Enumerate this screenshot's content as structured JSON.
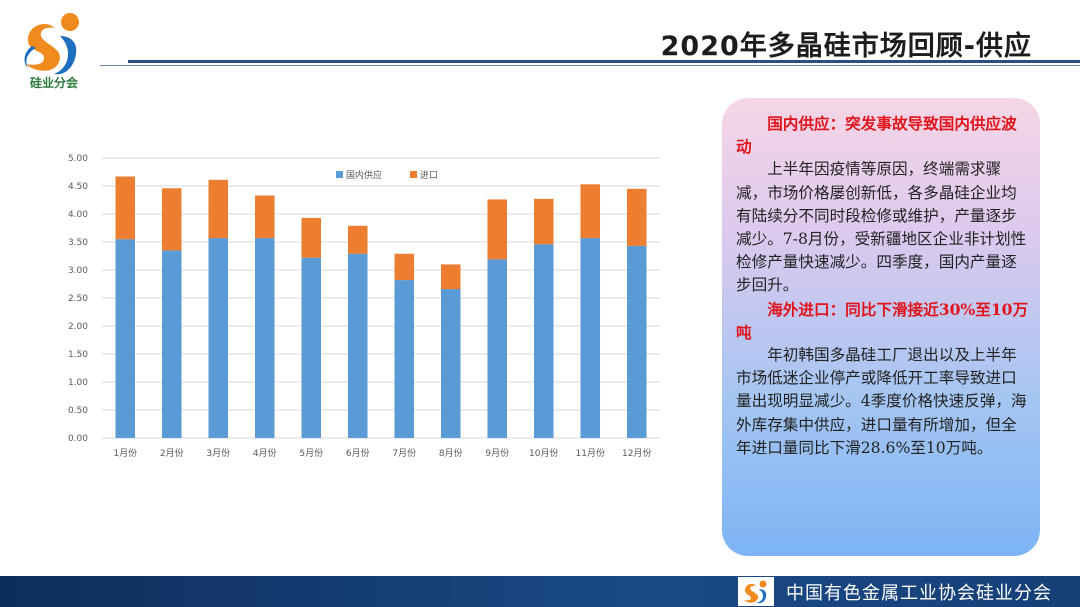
{
  "logo": {
    "text": "硅业分会",
    "colors": {
      "orange": "#f08a1c",
      "blue": "#1f6fc0",
      "green": "#2d7a3c"
    }
  },
  "header": {
    "title": "2020年多晶硅市场回顾-供应"
  },
  "chart_data": {
    "type": "bar",
    "stacked": true,
    "categories": [
      "1月份",
      "2月份",
      "3月份",
      "4月份",
      "5月份",
      "6月份",
      "7月份",
      "8月份",
      "9月份",
      "10月份",
      "11月份",
      "12月份"
    ],
    "series": [
      {
        "name": "国内供应",
        "color": "#5b9bd5",
        "values": [
          3.55,
          3.35,
          3.57,
          3.57,
          3.22,
          3.29,
          2.82,
          2.66,
          3.19,
          3.46,
          3.57,
          3.43
        ]
      },
      {
        "name": "进口",
        "color": "#ed7d31",
        "values": [
          1.12,
          1.11,
          1.04,
          0.76,
          0.71,
          0.5,
          0.47,
          0.44,
          1.07,
          0.81,
          0.96,
          1.02
        ]
      }
    ],
    "yticks": [
      "0.00",
      "0.50",
      "1.00",
      "1.50",
      "2.00",
      "2.50",
      "3.00",
      "3.50",
      "4.00",
      "4.50",
      "5.00"
    ],
    "ylim": [
      0,
      5
    ],
    "grid": true,
    "legend": "top-right"
  },
  "textbox": {
    "heading1": "国内供应：突发事故导致国内供应波动",
    "para1": "上半年因疫情等原因，终端需求骤减，市场价格屡创新低，各多晶硅企业均有陆续分不同时段检修或维护，产量逐步减少。7-8月份，受新疆地区企业非计划性检修产量快速减少。四季度，国内产量逐步回升。",
    "heading2": "海外进口：同比下滑接近30%至10万吨",
    "para2": "年初韩国多晶硅工厂退出以及上半年市场低迷企业停产或降低开工率导致进口量出现明显减少。4季度价格快速反弹，海外库存集中供应，进口量有所增加，但全年进口量同比下滑28.6%至10万吨。"
  },
  "footer": {
    "text": "中国有色金属工业协会硅业分会"
  }
}
